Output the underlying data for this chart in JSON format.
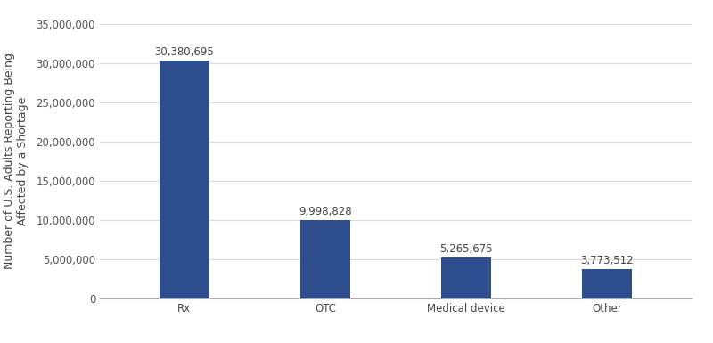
{
  "categories": [
    "Rx",
    "OTC",
    "Medical device",
    "Other"
  ],
  "values": [
    30380695,
    9998828,
    5265675,
    3773512
  ],
  "labels": [
    "30,380,695",
    "9,998,828",
    "5,265,675",
    "3,773,512"
  ],
  "bar_color": "#2E4D8C",
  "ylabel": "Number of U.S. Adults Reporting Being\nAffected by a Shortage",
  "ylim": [
    0,
    35000000
  ],
  "yticks": [
    0,
    5000000,
    10000000,
    15000000,
    20000000,
    25000000,
    30000000,
    35000000
  ],
  "ytick_labels": [
    "0",
    "5,000,000",
    "10,000,000",
    "15,000,000",
    "20,000,000",
    "25,000,000",
    "30,000,000",
    "35,000,000"
  ],
  "grid_color": "#d9d9d9",
  "background_color": "#ffffff",
  "label_fontsize": 8.5,
  "tick_fontsize": 8.5,
  "ylabel_fontsize": 9,
  "bar_width": 0.35,
  "figsize": [
    8.0,
    3.85
  ],
  "dpi": 100
}
